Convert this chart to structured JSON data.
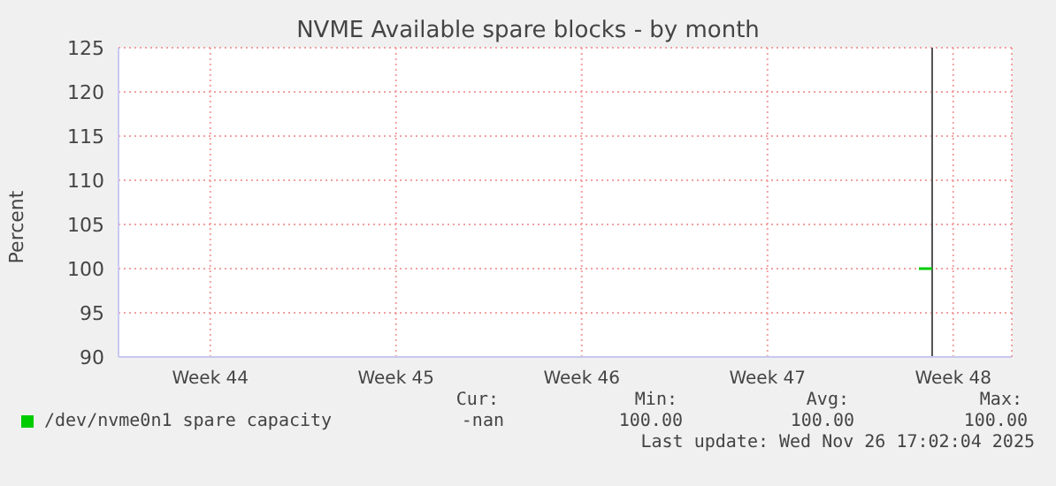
{
  "chart_data": {
    "type": "line",
    "title": "NVME Available spare blocks - by month",
    "ylabel": "Percent",
    "x": [
      "2025-11-26T05:00",
      "2025-11-26T17:00"
    ],
    "series": [
      {
        "name": "/dev/nvme0n1 spare capacity",
        "color": "#00cc00",
        "values": [
          100,
          100
        ]
      }
    ],
    "xlim": [
      "2025-10-27T01:00",
      "2025-11-29T17:00"
    ],
    "xticks": [
      {
        "value": "2025-10-30T12:00",
        "label": "Week 44"
      },
      {
        "value": "2025-11-06T12:00",
        "label": "Week 45"
      },
      {
        "value": "2025-11-13T12:00",
        "label": "Week 46"
      },
      {
        "value": "2025-11-20T12:00",
        "label": "Week 47"
      },
      {
        "value": "2025-11-27T12:00",
        "label": "Week 48"
      }
    ],
    "ylim": [
      90,
      125
    ],
    "yticks": [
      90,
      95,
      100,
      105,
      110,
      115,
      120,
      125
    ],
    "ref_lines": [
      {
        "axis": "x",
        "value": "2025-11-26T17:00",
        "color": "#555555"
      }
    ],
    "grid": true,
    "legend": "bottom",
    "marker": "none",
    "line_style": "solid",
    "annotations": [
      "Cur:",
      "-nan",
      "Min:",
      "100.00",
      "Avg:",
      "100.00",
      "Max:",
      "100.00",
      "Last update: Wed Nov 26 17:02:04 2025"
    ]
  }
}
